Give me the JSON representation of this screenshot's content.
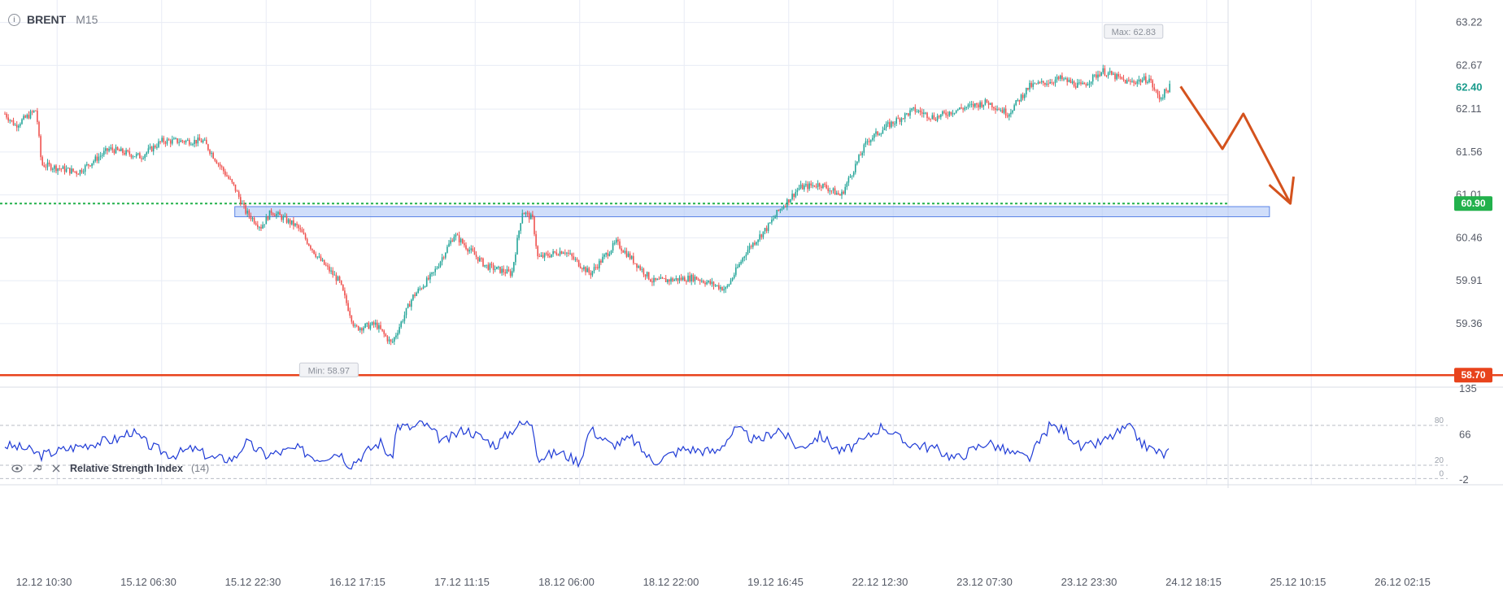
{
  "header": {
    "symbol": "BRENT",
    "timeframe": "M15",
    "info_icon": "info-icon"
  },
  "indicator": {
    "name": "Relative Strength Index",
    "param": "(14)",
    "icons": [
      "eye-icon",
      "wrench-icon",
      "close-icon"
    ]
  },
  "colors": {
    "up": "#26a69a",
    "down": "#ef5350",
    "rsi": "#1f3bd6",
    "green_level": "#22b14c",
    "red_level": "#e8431c",
    "zone": "#a9c2f5",
    "arrow": "#d4521d"
  },
  "chart_data": {
    "type": "candlestick",
    "symbol": "BRENT",
    "timeframe": "M15",
    "x_labels": [
      "12.12 10:30",
      "15.12 06:30",
      "15.12 22:30",
      "16.12 17:15",
      "17.12 11:15",
      "18.12 06:00",
      "18.12 22:00",
      "19.12 16:45",
      "22.12 12:30",
      "23.12 07:30",
      "23.12 23:30",
      "24.12 18:15",
      "25.12 10:15",
      "26.12 02:15"
    ],
    "y_ticks": [
      "63.22",
      "62.67",
      "62.11",
      "61.56",
      "61.01",
      "60.46",
      "59.91",
      "59.36"
    ],
    "ylim": [
      58.65,
      63.3
    ],
    "close_path": [
      [
        0,
        62.05
      ],
      [
        0.1,
        61.9
      ],
      [
        0.3,
        62.1
      ],
      [
        0.35,
        61.4
      ],
      [
        0.7,
        61.3
      ],
      [
        1.0,
        61.6
      ],
      [
        1.3,
        61.5
      ],
      [
        1.5,
        61.7
      ],
      [
        1.9,
        61.7
      ],
      [
        2.0,
        61.5
      ],
      [
        2.2,
        61.1
      ],
      [
        2.3,
        60.8
      ],
      [
        2.45,
        60.6
      ],
      [
        2.55,
        60.8
      ],
      [
        2.8,
        60.6
      ],
      [
        3.0,
        60.2
      ],
      [
        3.2,
        59.9
      ],
      [
        3.35,
        59.3
      ],
      [
        3.55,
        59.35
      ],
      [
        3.7,
        59.1
      ],
      [
        3.9,
        59.7
      ],
      [
        4.1,
        60.0
      ],
      [
        4.3,
        60.5
      ],
      [
        4.6,
        60.1
      ],
      [
        4.85,
        60.0
      ],
      [
        4.95,
        60.8
      ],
      [
        5.05,
        60.7
      ],
      [
        5.1,
        60.2
      ],
      [
        5.35,
        60.3
      ],
      [
        5.6,
        60.0
      ],
      [
        5.85,
        60.4
      ],
      [
        6.2,
        59.9
      ],
      [
        6.6,
        59.95
      ],
      [
        6.9,
        59.8
      ],
      [
        7.1,
        60.3
      ],
      [
        7.3,
        60.6
      ],
      [
        7.4,
        60.8
      ],
      [
        7.6,
        61.1
      ],
      [
        7.8,
        61.15
      ],
      [
        8.0,
        61.0
      ],
      [
        8.25,
        61.7
      ],
      [
        8.45,
        61.9
      ],
      [
        8.7,
        62.1
      ],
      [
        8.9,
        62.0
      ],
      [
        9.1,
        62.1
      ],
      [
        9.4,
        62.2
      ],
      [
        9.6,
        62.05
      ],
      [
        9.8,
        62.4
      ],
      [
        10.1,
        62.5
      ],
      [
        10.3,
        62.4
      ],
      [
        10.5,
        62.6
      ],
      [
        10.75,
        62.45
      ],
      [
        10.95,
        62.5
      ],
      [
        11.0,
        62.35
      ],
      [
        11.05,
        62.25
      ],
      [
        11.15,
        62.4
      ]
    ],
    "max_label": "Max: 62.83",
    "max_point": [
      10.8,
      62.83
    ],
    "min_label": "Min: 58.97",
    "min_point": [
      3.1,
      58.97
    ],
    "current_price": "62.40",
    "green_level": {
      "value": 60.9,
      "label": "60.90"
    },
    "red_level": {
      "value": 58.7,
      "label": "58.70"
    },
    "zone": {
      "x0": 2.2,
      "x1": 12.1,
      "y0": 60.73,
      "y1": 60.86
    },
    "forecast_arrow": [
      [
        11.25,
        62.4
      ],
      [
        11.65,
        61.6
      ],
      [
        11.85,
        62.05
      ],
      [
        12.3,
        60.9
      ]
    ],
    "rsi": {
      "y_ticks": [
        "135",
        "66",
        "-2"
      ],
      "levels": [
        "80",
        "20",
        "0"
      ],
      "ylim": [
        -2,
        135
      ],
      "path": [
        [
          0,
          50
        ],
        [
          0.2,
          45
        ],
        [
          0.35,
          35
        ],
        [
          0.6,
          45
        ],
        [
          0.9,
          55
        ],
        [
          1.1,
          60
        ],
        [
          1.2,
          72
        ],
        [
          1.4,
          48
        ],
        [
          1.6,
          35
        ],
        [
          1.8,
          45
        ],
        [
          2.0,
          30
        ],
        [
          2.2,
          30
        ],
        [
          2.3,
          55
        ],
        [
          2.5,
          35
        ],
        [
          2.8,
          45
        ],
        [
          3.0,
          30
        ],
        [
          3.2,
          40
        ],
        [
          3.3,
          20
        ],
        [
          3.5,
          45
        ],
        [
          3.6,
          55
        ],
        [
          3.7,
          25
        ],
        [
          3.75,
          80
        ],
        [
          3.9,
          76
        ],
        [
          4.0,
          84
        ],
        [
          4.2,
          55
        ],
        [
          4.4,
          75
        ],
        [
          4.7,
          50
        ],
        [
          4.9,
          80
        ],
        [
          5.05,
          85
        ],
        [
          5.1,
          30
        ],
        [
          5.3,
          40
        ],
        [
          5.5,
          25
        ],
        [
          5.6,
          75
        ],
        [
          5.8,
          50
        ],
        [
          6.0,
          60
        ],
        [
          6.2,
          25
        ],
        [
          6.5,
          45
        ],
        [
          6.8,
          40
        ],
        [
          7.0,
          75
        ],
        [
          7.2,
          55
        ],
        [
          7.4,
          75
        ],
        [
          7.6,
          45
        ],
        [
          7.8,
          65
        ],
        [
          8.0,
          40
        ],
        [
          8.2,
          55
        ],
        [
          8.4,
          80
        ],
        [
          8.6,
          55
        ],
        [
          8.9,
          45
        ],
        [
          9.1,
          30
        ],
        [
          9.4,
          55
        ],
        [
          9.6,
          40
        ],
        [
          9.8,
          30
        ],
        [
          10.0,
          80
        ],
        [
          10.15,
          72
        ],
        [
          10.3,
          45
        ],
        [
          10.5,
          55
        ],
        [
          10.75,
          78
        ],
        [
          10.9,
          50
        ],
        [
          11.1,
          35
        ],
        [
          11.15,
          45
        ]
      ]
    }
  }
}
